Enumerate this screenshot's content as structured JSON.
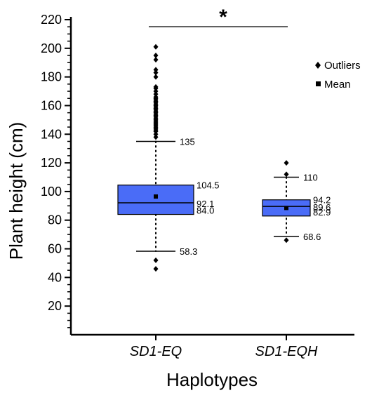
{
  "chart_data": {
    "type": "box",
    "ylabel": "Plant height (cm)",
    "xlabel": "Haplotypes",
    "ylim": [
      0,
      220
    ],
    "yticks": [
      20,
      40,
      60,
      80,
      100,
      120,
      140,
      160,
      180,
      200,
      220
    ],
    "legend": {
      "position": "top-right",
      "entries": [
        {
          "marker": "diamond",
          "label": "Outliers"
        },
        {
          "marker": "square",
          "label": "Mean"
        }
      ]
    },
    "significance": {
      "label": "*",
      "between": [
        "SD1-EQ",
        "SD1-EQH"
      ]
    },
    "box_color": "#4a6cf7",
    "groups": [
      {
        "name": "SD1-EQ",
        "whisker_low": 58.3,
        "q1": 84.0,
        "median": 92.1,
        "q3": 104.5,
        "whisker_high": 135,
        "mean": 96.5,
        "labels": {
          "whisker_high": "135",
          "q3": "104.5",
          "median": "92.1",
          "q1": "84.0",
          "whisker_low": "58.3"
        },
        "outliers": [
          46,
          52,
          138,
          140,
          142,
          143,
          144,
          145,
          146,
          147,
          148,
          149,
          150,
          151,
          152,
          153,
          154,
          155,
          156,
          157,
          158,
          159,
          160,
          161,
          162,
          163,
          164,
          165,
          166,
          168,
          170,
          172,
          173,
          180,
          183,
          185,
          192,
          195,
          201
        ]
      },
      {
        "name": "SD1-EQH",
        "whisker_low": 68.6,
        "q1": 82.9,
        "median": 89.6,
        "q3": 94.2,
        "whisker_high": 110,
        "mean": 88.5,
        "labels": {
          "whisker_high": "110",
          "q3": "94.2",
          "median": "89.6",
          "q1": "82.9",
          "whisker_low": "68.6"
        },
        "outliers": [
          66,
          112,
          120
        ]
      }
    ]
  }
}
